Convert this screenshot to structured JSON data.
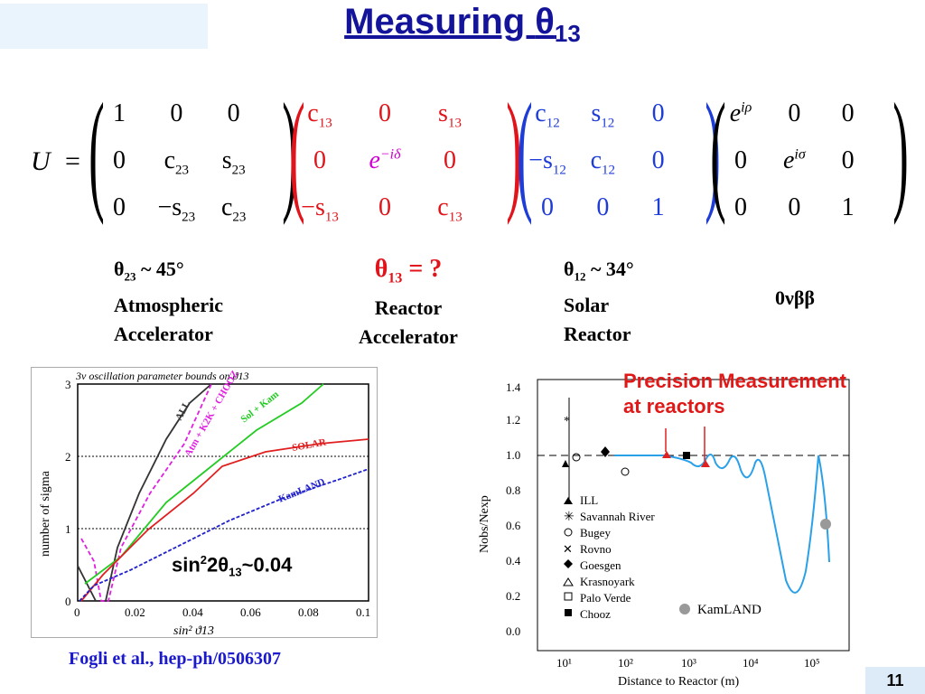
{
  "title": {
    "prefix": "Measuring ",
    "symbol": "θ",
    "sub": "13"
  },
  "matrix": {
    "lhs": "U",
    "eq": "=",
    "m1": [
      [
        "1",
        "0",
        "0"
      ],
      [
        "0",
        "c|23",
        "s|23"
      ],
      [
        "0",
        "−s|23",
        "c|23"
      ]
    ],
    "m2": [
      [
        "c|13",
        "0",
        "s|13"
      ],
      [
        "0",
        "e^−iδ",
        "0"
      ],
      [
        "−s|13",
        "0",
        "c|13"
      ]
    ],
    "m3": [
      [
        "c|12",
        "s|12",
        "0"
      ],
      [
        "−s|12",
        "c|12",
        "0"
      ],
      [
        "0",
        "0",
        "1"
      ]
    ],
    "m4": [
      [
        "e^iρ",
        "0",
        "0"
      ],
      [
        "0",
        "e^iσ",
        "0"
      ],
      [
        "0",
        "0",
        "1"
      ]
    ]
  },
  "labels": {
    "l1": {
      "angle": "θ",
      "sub": "23",
      "rest": " ~ 45°",
      "line2": "Atmospheric",
      "line3": "Accelerator"
    },
    "l2": {
      "angle": "θ",
      "sub": "13",
      "rest": " = ?",
      "line2": "Reactor",
      "line3": "Accelerator"
    },
    "l3": {
      "angle": "θ",
      "sub": "12",
      "rest": " ~ 34°",
      "line2": "Solar",
      "line3": "Reactor"
    },
    "l4": {
      "text": "0νββ"
    }
  },
  "left_plot": {
    "title": "3ν oscillation parameter bounds on ϑ13",
    "ylabel": "number of sigma",
    "xlabel": "sin² ϑ13",
    "xticks": [
      "0",
      "0.02",
      "0.04",
      "0.06",
      "0.08",
      "0.1"
    ],
    "yticks": [
      "0",
      "1",
      "2",
      "3"
    ],
    "curve_labels": [
      "ALL",
      "Atm + K2K + CHOOZ",
      "Sol + Kam",
      "SOLAR",
      "KamLAND"
    ],
    "annotation": {
      "pre": "sin",
      "sup": "2",
      "mid": "2θ",
      "sub": "13",
      "post": "~0.04"
    },
    "colors": {
      "all": "#333333",
      "atm": "#e020e0",
      "solkam": "#22cc22",
      "solar": "#e02020",
      "kamland": "#2020cc"
    }
  },
  "right_plot": {
    "ylabel": "Nobs/Nexp",
    "xlabel": "Distance to Reactor (m)",
    "yticks": [
      "0.0",
      "0.2",
      "0.4",
      "0.6",
      "0.8",
      "1.0",
      "1.2",
      "1.4"
    ],
    "xticks": [
      "10¹",
      "10²",
      "10³",
      "10⁴",
      "10⁵"
    ],
    "legend": [
      "ILL",
      "Savannah River",
      "Bugey",
      "Rovno",
      "Goesgen",
      "Krasnoyark",
      "Palo Verde",
      "Chooz"
    ],
    "kamland": "KamLAND",
    "pm_line1": "Precision Measurement",
    "pm_line2": "at reactors"
  },
  "citation": "Fogli et al.,  hep-ph/0506307",
  "page_number": "11"
}
